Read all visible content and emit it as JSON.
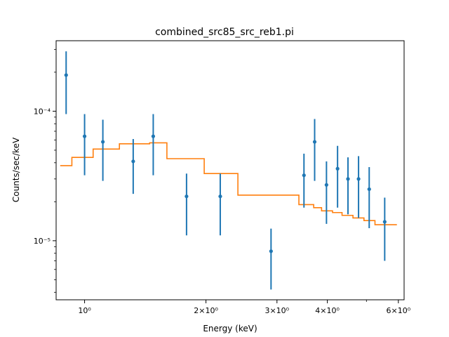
{
  "chart_data": {
    "type": "scatter",
    "title": "combined_src85_src_reb1.pi",
    "xlabel": "Energy (keV)",
    "ylabel": "Counts/sec/keV",
    "xscale": "log",
    "yscale": "log",
    "xlim": [
      0.85,
      6.2
    ],
    "ylim": [
      3.5e-06,
      0.00035
    ],
    "x_ticks": [
      {
        "value": 1,
        "label": "10⁰"
      },
      {
        "value": 2,
        "label": "2×10⁰"
      },
      {
        "value": 3,
        "label": "3×10⁰"
      },
      {
        "value": 4,
        "label": "4×10⁰"
      },
      {
        "value": 6,
        "label": "6×10⁰"
      }
    ],
    "x_minor_ticks": [
      5
    ],
    "y_ticks": [
      {
        "value": 1e-05,
        "label": "10⁻⁵"
      },
      {
        "value": 0.0001,
        "label": "10⁻⁴"
      }
    ],
    "y_minor_ticks": [
      4e-06,
      5e-06,
      6e-06,
      7e-06,
      8e-06,
      9e-06,
      2e-05,
      3e-05,
      4e-05,
      5e-05,
      6e-05,
      7e-05,
      8e-05,
      9e-05,
      0.0002,
      0.0003
    ],
    "series": [
      {
        "kind": "errorbar",
        "color": "#1f77b4",
        "points": [
          {
            "x": 0.9,
            "y": 0.00019,
            "ylo": 9.5e-05,
            "yhi": 0.00029
          },
          {
            "x": 1.0,
            "y": 6.4e-05,
            "ylo": 3.2e-05,
            "yhi": 9.5e-05
          },
          {
            "x": 1.11,
            "y": 5.8e-05,
            "ylo": 2.9e-05,
            "yhi": 8.6e-05
          },
          {
            "x": 1.32,
            "y": 4.1e-05,
            "ylo": 2.3e-05,
            "yhi": 6.1e-05
          },
          {
            "x": 1.48,
            "y": 6.4e-05,
            "ylo": 3.2e-05,
            "yhi": 9.5e-05
          },
          {
            "x": 1.79,
            "y": 2.2e-05,
            "ylo": 1.1e-05,
            "yhi": 3.3e-05
          },
          {
            "x": 2.17,
            "y": 2.2e-05,
            "ylo": 1.1e-05,
            "yhi": 3.3e-05
          },
          {
            "x": 2.9,
            "y": 8.3e-06,
            "ylo": 4.2e-06,
            "yhi": 1.24e-05
          },
          {
            "x": 3.5,
            "y": 3.2e-05,
            "ylo": 1.8e-05,
            "yhi": 4.7e-05
          },
          {
            "x": 3.72,
            "y": 5.8e-05,
            "ylo": 2.9e-05,
            "yhi": 8.7e-05
          },
          {
            "x": 3.98,
            "y": 2.7e-05,
            "ylo": 1.35e-05,
            "yhi": 4.1e-05
          },
          {
            "x": 4.24,
            "y": 3.6e-05,
            "ylo": 1.8e-05,
            "yhi": 5.4e-05
          },
          {
            "x": 4.5,
            "y": 3e-05,
            "ylo": 1.6e-05,
            "yhi": 4.4e-05
          },
          {
            "x": 4.78,
            "y": 3e-05,
            "ylo": 1.5e-05,
            "yhi": 4.5e-05
          },
          {
            "x": 5.08,
            "y": 2.5e-05,
            "ylo": 1.25e-05,
            "yhi": 3.7e-05
          },
          {
            "x": 5.55,
            "y": 1.4e-05,
            "ylo": 7e-06,
            "yhi": 2.15e-05
          }
        ]
      },
      {
        "kind": "step",
        "color": "#ff7f0e",
        "bins": [
          {
            "x0": 0.87,
            "x1": 0.93,
            "y": 3.8e-05
          },
          {
            "x0": 0.93,
            "x1": 1.05,
            "y": 4.4e-05
          },
          {
            "x0": 1.05,
            "x1": 1.22,
            "y": 5.1e-05
          },
          {
            "x0": 1.22,
            "x1": 1.45,
            "y": 5.6e-05
          },
          {
            "x0": 1.45,
            "x1": 1.6,
            "y": 5.7e-05
          },
          {
            "x0": 1.6,
            "x1": 1.98,
            "y": 4.3e-05
          },
          {
            "x0": 1.98,
            "x1": 2.4,
            "y": 3.3e-05
          },
          {
            "x0": 2.4,
            "x1": 3.4,
            "y": 2.25e-05
          },
          {
            "x0": 3.4,
            "x1": 3.7,
            "y": 1.9e-05
          },
          {
            "x0": 3.7,
            "x1": 3.87,
            "y": 1.8e-05
          },
          {
            "x0": 3.87,
            "x1": 4.12,
            "y": 1.7e-05
          },
          {
            "x0": 4.12,
            "x1": 4.35,
            "y": 1.65e-05
          },
          {
            "x0": 4.35,
            "x1": 4.63,
            "y": 1.57e-05
          },
          {
            "x0": 4.63,
            "x1": 4.93,
            "y": 1.5e-05
          },
          {
            "x0": 4.93,
            "x1": 5.25,
            "y": 1.43e-05
          },
          {
            "x0": 5.25,
            "x1": 5.95,
            "y": 1.33e-05
          }
        ]
      }
    ]
  }
}
